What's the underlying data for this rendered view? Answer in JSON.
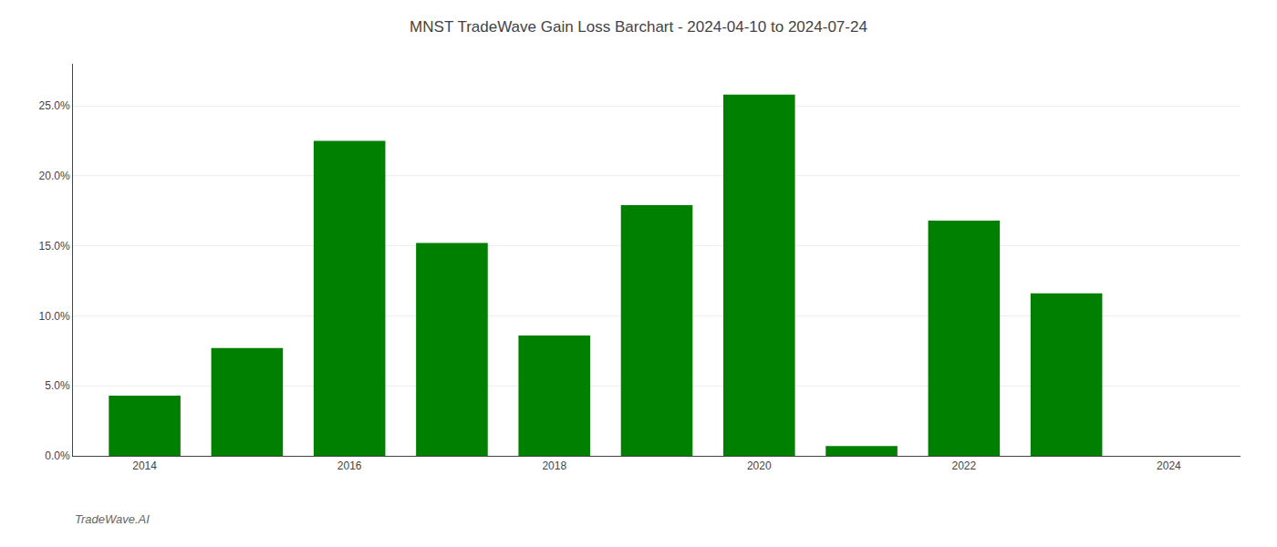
{
  "chart_data": {
    "type": "bar",
    "title": "MNST TradeWave Gain Loss Barchart - 2024-04-10 to 2024-07-24",
    "annotations": [
      {
        "text": "TradeWave.AI"
      }
    ],
    "x": [
      2014,
      2015,
      2016,
      2017,
      2018,
      2019,
      2020,
      2021,
      2022,
      2023
    ],
    "values": [
      0.043,
      0.077,
      0.225,
      0.152,
      0.086,
      0.179,
      0.258,
      0.007,
      0.168,
      0.116
    ],
    "color": "#008000",
    "xlim": [
      2013.3,
      2024.7
    ],
    "xticks": [
      2014,
      2016,
      2018,
      2020,
      2022,
      2024
    ],
    "ylim": [
      0,
      0.28
    ],
    "yticks": [
      {
        "value": 0.0,
        "label": "0.0%"
      },
      {
        "value": 0.05,
        "label": "5.0%"
      },
      {
        "value": 0.1,
        "label": "10.0%"
      },
      {
        "value": 0.15,
        "label": "15.0%"
      },
      {
        "value": 0.2,
        "label": "20.0%"
      },
      {
        "value": 0.25,
        "label": "25.0%"
      }
    ],
    "grid": true
  }
}
